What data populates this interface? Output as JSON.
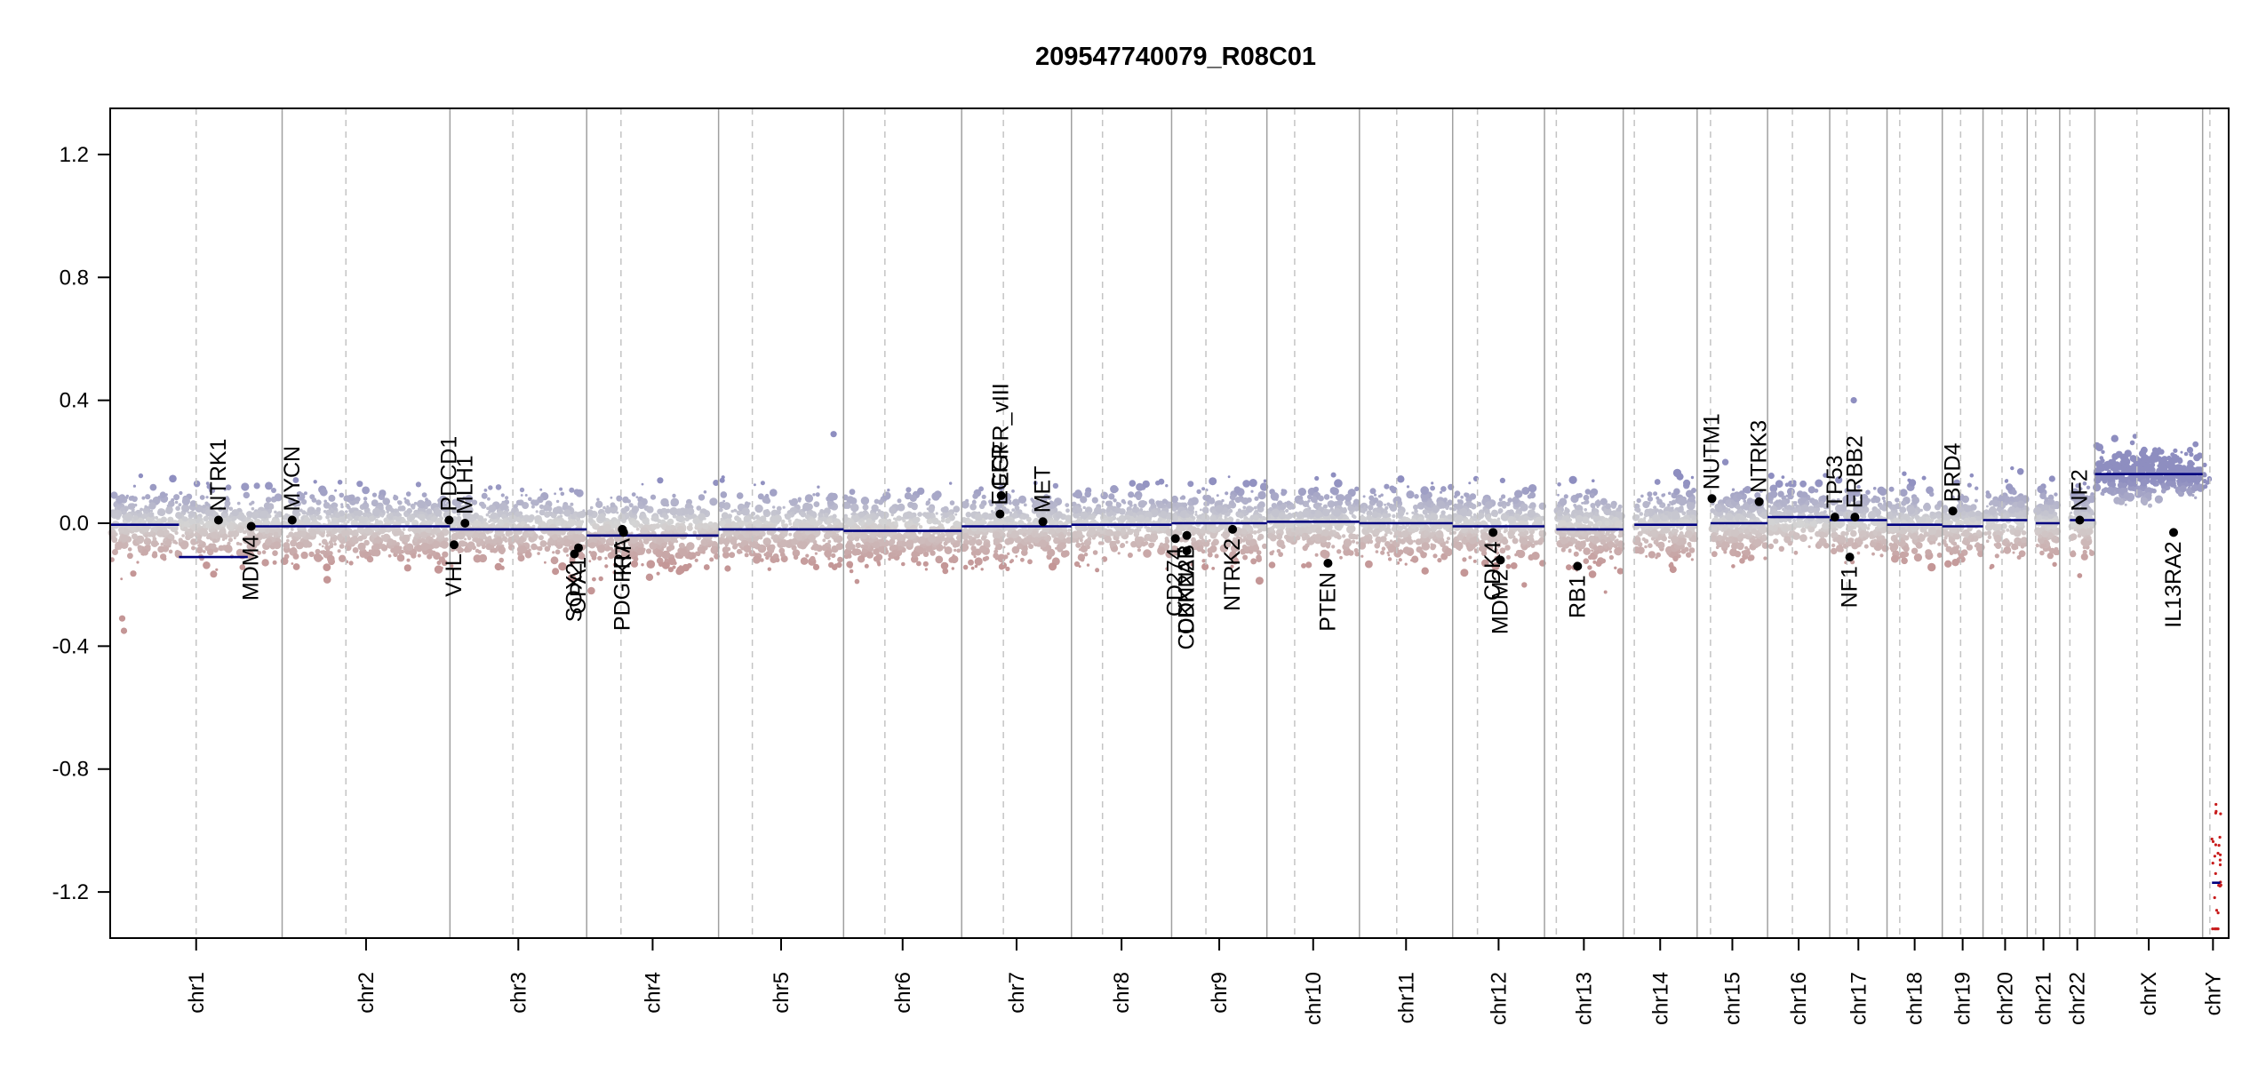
{
  "chart_data": {
    "type": "scatter",
    "title": "209547740079_R08C01",
    "ylim": [
      -1.35,
      1.35
    ],
    "yticks": [
      -1.2,
      -0.8,
      -0.4,
      0.0,
      0.4,
      0.8,
      1.2
    ],
    "ytick_labels": [
      "-1.2",
      "-0.8",
      "-0.4",
      "0.0",
      "0.4",
      "0.8",
      "1.2"
    ],
    "grid": false,
    "chromosomes": [
      {
        "name": "chr1",
        "size": 249,
        "centromere": 0.5,
        "segments": [
          {
            "from": 0,
            "to": 0.4,
            "mean": -0.005
          },
          {
            "from": 0.4,
            "to": 0.8,
            "mean": -0.11
          },
          {
            "from": 0.8,
            "to": 1.0,
            "mean": -0.01
          }
        ]
      },
      {
        "name": "chr2",
        "size": 243,
        "centromere": 0.38,
        "segments": [
          {
            "from": 0,
            "to": 1,
            "mean": -0.01
          }
        ]
      },
      {
        "name": "chr3",
        "size": 198,
        "centromere": 0.46,
        "segments": [
          {
            "from": 0,
            "to": 1,
            "mean": -0.02
          }
        ]
      },
      {
        "name": "chr4",
        "size": 191,
        "centromere": 0.26,
        "segments": [
          {
            "from": 0,
            "to": 1,
            "mean": -0.04
          }
        ]
      },
      {
        "name": "chr5",
        "size": 181,
        "centromere": 0.27,
        "segments": [
          {
            "from": 0,
            "to": 1,
            "mean": -0.02
          }
        ]
      },
      {
        "name": "chr6",
        "size": 171,
        "centromere": 0.35,
        "segments": [
          {
            "from": 0,
            "to": 1,
            "mean": -0.025
          }
        ]
      },
      {
        "name": "chr7",
        "size": 159,
        "centromere": 0.38,
        "segments": [
          {
            "from": 0,
            "to": 1,
            "mean": -0.01
          }
        ]
      },
      {
        "name": "chr8",
        "size": 145,
        "centromere": 0.31,
        "segments": [
          {
            "from": 0,
            "to": 1,
            "mean": -0.005
          }
        ]
      },
      {
        "name": "chr9",
        "size": 138,
        "centromere": 0.36,
        "segments": [
          {
            "from": 0,
            "to": 1,
            "mean": 0.0
          }
        ]
      },
      {
        "name": "chr10",
        "size": 134,
        "centromere": 0.3,
        "segments": [
          {
            "from": 0,
            "to": 1,
            "mean": 0.005
          }
        ]
      },
      {
        "name": "chr11",
        "size": 135,
        "centromere": 0.4,
        "segments": [
          {
            "from": 0,
            "to": 1,
            "mean": 0.0
          }
        ]
      },
      {
        "name": "chr12",
        "size": 133,
        "centromere": 0.27,
        "segments": [
          {
            "from": 0,
            "to": 1,
            "mean": -0.01
          }
        ]
      },
      {
        "name": "chr13",
        "size": 114,
        "centromere": 0.15,
        "segments": [
          {
            "from": 0.15,
            "to": 1,
            "mean": -0.02
          }
        ]
      },
      {
        "name": "chr14",
        "size": 107,
        "centromere": 0.15,
        "segments": [
          {
            "from": 0.15,
            "to": 1,
            "mean": -0.005
          }
        ]
      },
      {
        "name": "chr15",
        "size": 102,
        "centromere": 0.19,
        "segments": [
          {
            "from": 0.19,
            "to": 1,
            "mean": 0.0
          }
        ]
      },
      {
        "name": "chr16",
        "size": 90,
        "centromere": 0.4,
        "segments": [
          {
            "from": 0,
            "to": 1,
            "mean": 0.02
          }
        ]
      },
      {
        "name": "chr17",
        "size": 83,
        "centromere": 0.3,
        "segments": [
          {
            "from": 0,
            "to": 1,
            "mean": 0.01
          }
        ]
      },
      {
        "name": "chr18",
        "size": 80,
        "centromere": 0.23,
        "segments": [
          {
            "from": 0,
            "to": 1,
            "mean": -0.005
          }
        ]
      },
      {
        "name": "chr19",
        "size": 59,
        "centromere": 0.45,
        "segments": [
          {
            "from": 0,
            "to": 1,
            "mean": -0.01
          }
        ]
      },
      {
        "name": "chr20",
        "size": 64,
        "centromere": 0.43,
        "segments": [
          {
            "from": 0,
            "to": 1,
            "mean": 0.01
          }
        ]
      },
      {
        "name": "chr21",
        "size": 47,
        "centromere": 0.26,
        "segments": [
          {
            "from": 0.26,
            "to": 1,
            "mean": 0.0
          }
        ]
      },
      {
        "name": "chr22",
        "size": 51,
        "centromere": 0.29,
        "segments": [
          {
            "from": 0.29,
            "to": 1,
            "mean": 0.01
          }
        ]
      },
      {
        "name": "chrX",
        "size": 156,
        "centromere": 0.39,
        "segments": [
          {
            "from": 0,
            "to": 1,
            "mean": 0.16
          }
        ]
      },
      {
        "name": "chrY",
        "size": 30,
        "centromere": 0.35,
        "segments": [
          {
            "from": 0.45,
            "to": 0.85,
            "mean": -1.17
          }
        ]
      }
    ],
    "genes": [
      {
        "name": "NTRK1",
        "chr": "chr1",
        "pos": 0.63,
        "value": 0.01,
        "label_side": "above"
      },
      {
        "name": "MDM4",
        "chr": "chr1",
        "pos": 0.82,
        "value": -0.01,
        "label_side": "below"
      },
      {
        "name": "MYCN",
        "chr": "chr2",
        "pos": 0.06,
        "value": 0.01,
        "label_side": "above"
      },
      {
        "name": "PDCD1",
        "chr": "chr2",
        "pos": 0.995,
        "value": 0.01,
        "label_side": "above"
      },
      {
        "name": "VHL",
        "chr": "chr3",
        "pos": 0.03,
        "value": -0.07,
        "label_side": "below"
      },
      {
        "name": "MLH1",
        "chr": "chr3",
        "pos": 0.11,
        "value": 0.0,
        "label_side": "above"
      },
      {
        "name": "SOX2",
        "chr": "chr3",
        "pos": 0.91,
        "value": -0.1,
        "label_side": "below"
      },
      {
        "name": "OPA1",
        "chr": "chr3",
        "pos": 0.94,
        "value": -0.08,
        "label_side": "below"
      },
      {
        "name": "PDGFRA",
        "chr": "chr4",
        "pos": 0.27,
        "value": -0.02,
        "label_side": "below"
      },
      {
        "name": "KIT",
        "chr": "chr4",
        "pos": 0.28,
        "value": -0.03,
        "label_side": "below"
      },
      {
        "name": "EGFR",
        "chr": "chr7",
        "pos": 0.35,
        "value": 0.03,
        "label_side": "above"
      },
      {
        "name": "EGFR_vIII",
        "chr": "chr7",
        "pos": 0.36,
        "value": 0.09,
        "label_side": "above"
      },
      {
        "name": "MET",
        "chr": "chr7",
        "pos": 0.74,
        "value": 0.005,
        "label_side": "above"
      },
      {
        "name": "CD274",
        "chr": "chr9",
        "pos": 0.04,
        "value": -0.05,
        "label_side": "below"
      },
      {
        "name": "CDKN2A",
        "chr": "chr9",
        "pos": 0.16,
        "value": -0.09,
        "label_side": "below"
      },
      {
        "name": "CDKN2B",
        "chr": "chr9",
        "pos": 0.16,
        "value": -0.04,
        "label_side": "below"
      },
      {
        "name": "NTRK2",
        "chr": "chr9",
        "pos": 0.64,
        "value": -0.02,
        "label_side": "below"
      },
      {
        "name": "PTEN",
        "chr": "chr10",
        "pos": 0.66,
        "value": -0.13,
        "label_side": "below"
      },
      {
        "name": "CDK4",
        "chr": "chr12",
        "pos": 0.44,
        "value": -0.03,
        "label_side": "below"
      },
      {
        "name": "MDM2",
        "chr": "chr12",
        "pos": 0.52,
        "value": -0.12,
        "label_side": "below"
      },
      {
        "name": "RB1",
        "chr": "chr13",
        "pos": 0.42,
        "value": -0.14,
        "label_side": "below"
      },
      {
        "name": "NUTM1",
        "chr": "chr15",
        "pos": 0.21,
        "value": 0.08,
        "label_side": "above"
      },
      {
        "name": "NTRK3",
        "chr": "chr15",
        "pos": 0.88,
        "value": 0.07,
        "label_side": "above"
      },
      {
        "name": "TP53",
        "chr": "chr17",
        "pos": 0.09,
        "value": 0.02,
        "label_side": "above"
      },
      {
        "name": "NF1",
        "chr": "chr17",
        "pos": 0.35,
        "value": -0.11,
        "label_side": "below"
      },
      {
        "name": "ERBB2",
        "chr": "chr17",
        "pos": 0.44,
        "value": 0.02,
        "label_side": "above"
      },
      {
        "name": "BRD4",
        "chr": "chr19",
        "pos": 0.26,
        "value": 0.04,
        "label_side": "above"
      },
      {
        "name": "NF2",
        "chr": "chr22",
        "pos": 0.57,
        "value": 0.01,
        "label_side": "above"
      },
      {
        "name": "IL13RA2",
        "chr": "chrX",
        "pos": 0.73,
        "value": -0.03,
        "label_side": "below"
      }
    ],
    "outliers": [
      {
        "chr": "chr5",
        "pos": 0.92,
        "value": 0.29
      },
      {
        "chr": "chr17",
        "pos": 0.42,
        "value": 0.4
      },
      {
        "chr": "chr1",
        "pos": 0.07,
        "value": -0.31
      },
      {
        "chr": "chr1",
        "pos": 0.08,
        "value": -0.35
      }
    ],
    "colors": {
      "gain": "#8e8ec0",
      "neutral": "#d4d4d4",
      "loss": "#c49696",
      "segment": "#00007f",
      "separator": "#a0a0a0",
      "centromere": "#c4c4c4",
      "gene_point": "#000000",
      "chrY_points": "#c81c1c"
    }
  }
}
